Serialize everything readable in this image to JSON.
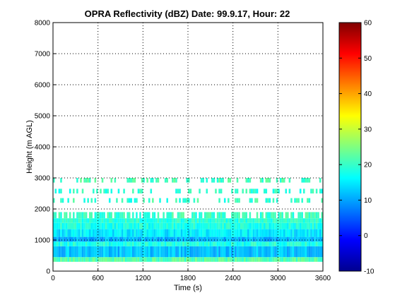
{
  "chart_data": {
    "type": "heatmap",
    "title": "OPRA Reflectivity (dBZ)  Date: 99.9.17, Hour: 22",
    "xlabel": "Time (s)",
    "ylabel": "Height (m AGL)",
    "xlim": [
      0,
      3600
    ],
    "ylim": [
      0,
      8000
    ],
    "xticks": [
      0,
      600,
      1200,
      1800,
      2400,
      3000,
      3600
    ],
    "yticks": [
      0,
      1000,
      2000,
      3000,
      4000,
      5000,
      6000,
      7000,
      8000
    ],
    "grid": true,
    "colorbar": {
      "range": [
        -10,
        60
      ],
      "ticks": [
        -10,
        0,
        10,
        20,
        30,
        40,
        50,
        60
      ],
      "colormap": "jet"
    },
    "layers": [
      {
        "base_m": 300,
        "top_m": 450,
        "dbz": 22
      },
      {
        "base_m": 450,
        "top_m": 800,
        "dbz": 12
      },
      {
        "base_m": 800,
        "top_m": 950,
        "dbz": 18
      },
      {
        "base_m": 950,
        "top_m": 1100,
        "dbz": 11
      },
      {
        "base_m": 1100,
        "top_m": 1350,
        "dbz": 15
      },
      {
        "base_m": 1350,
        "top_m": 1550,
        "dbz": 18
      },
      {
        "base_m": 1550,
        "top_m": 1700,
        "dbz": 19
      },
      {
        "base_m": 1700,
        "top_m": 1900,
        "dbz": 20,
        "coverage": "intermittent"
      },
      {
        "base_m": 2200,
        "top_m": 2350,
        "dbz": 20,
        "coverage": "sparse"
      },
      {
        "base_m": 2500,
        "top_m": 2650,
        "dbz": 19,
        "coverage": "sparse"
      },
      {
        "base_m": 2850,
        "top_m": 3000,
        "dbz": 21,
        "coverage": "sparse"
      }
    ]
  }
}
